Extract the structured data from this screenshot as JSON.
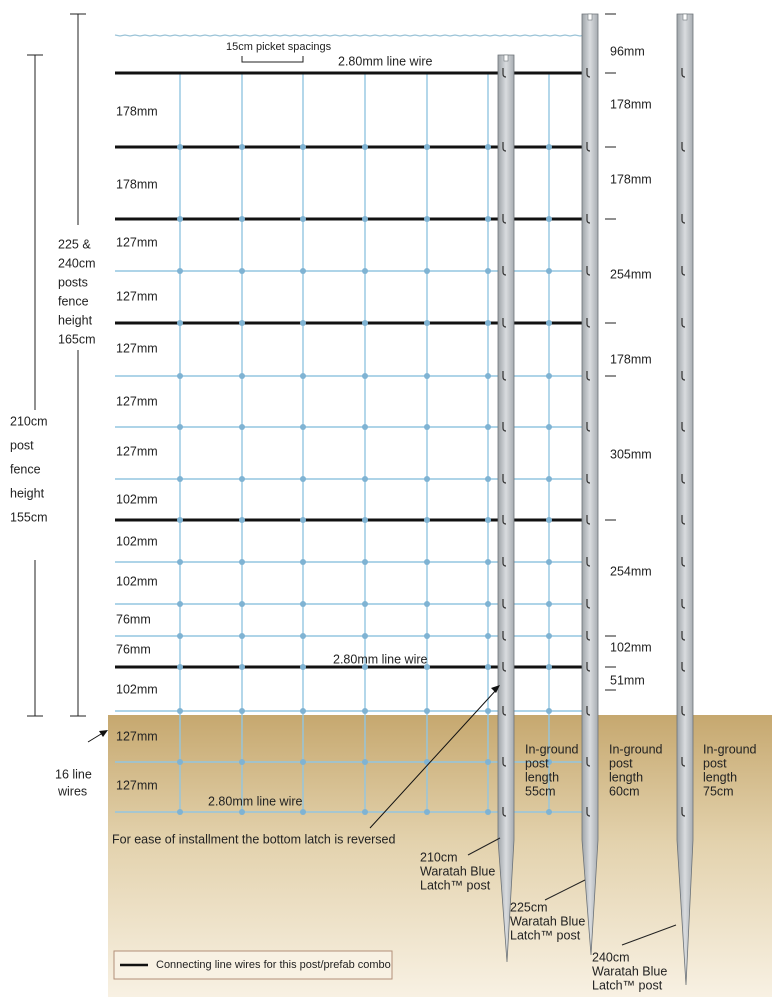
{
  "picket_spacing": "15cm picket spacings",
  "line_wire_labels": [
    "2.80mm line wire",
    "2.80mm line wire",
    "2.80mm line wire"
  ],
  "left_spacings": [
    "178mm",
    "178mm",
    "127mm",
    "127mm",
    "127mm",
    "127mm",
    "127mm",
    "102mm",
    "102mm",
    "102mm",
    "76mm",
    "76mm",
    "102mm",
    "127mm",
    "127mm"
  ],
  "right_spacings": [
    "96mm",
    "178mm",
    "178mm",
    "254mm",
    "178mm",
    "305mm",
    "254mm",
    "102mm",
    "51mm"
  ],
  "height_tall": [
    "225 &",
    "240cm",
    "posts",
    "fence",
    "height",
    "165cm"
  ],
  "height_short": [
    "210cm",
    "post",
    "fence",
    "height",
    "155cm"
  ],
  "line_wire_count": [
    "16 line",
    "wires"
  ],
  "in_ground": [
    [
      "In-ground",
      "post",
      "length",
      "55cm"
    ],
    [
      "In-ground",
      "post",
      "length",
      "60cm"
    ],
    [
      "In-ground",
      "post",
      "length",
      "75cm"
    ]
  ],
  "posts": [
    [
      "210cm",
      "Waratah Blue",
      "Latch™ post"
    ],
    [
      "225cm",
      "Waratah Blue",
      "Latch™ post"
    ],
    [
      "240cm",
      "Waratah Blue",
      "Latch™ post"
    ]
  ],
  "note": "For ease of installment the bottom latch is reversed",
  "legend": "Connecting line wires for this post/prefab combo"
}
